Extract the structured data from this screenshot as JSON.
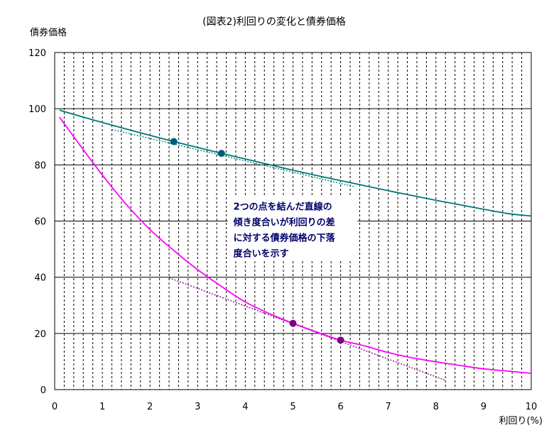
{
  "chart_data": {
    "type": "line",
    "title": "(図表2)利回りの変化と債券価格",
    "xlabel": "利回り(%)",
    "ylabel": "債券価格",
    "xlim": [
      0,
      10
    ],
    "ylim": [
      0,
      120
    ],
    "x_ticks": [
      "0",
      "1",
      "2",
      "3",
      "4",
      "5",
      "6",
      "7",
      "8",
      "9",
      "10"
    ],
    "y_ticks": [
      "0",
      "20",
      "40",
      "60",
      "80",
      "100",
      "120"
    ],
    "grid": {
      "horizontal": true,
      "vertical_minor_dashed": true
    },
    "series": [
      {
        "color": "#007777",
        "x": [
          0.1,
          0.5,
          1,
          1.5,
          2,
          2.5,
          3,
          3.5,
          4,
          4.5,
          5,
          5.5,
          6,
          6.5,
          7,
          7.5,
          8,
          8.5,
          9,
          9.5,
          10
        ],
        "values": [
          99.5,
          97.5,
          95.1,
          92.8,
          90.5,
          88.3,
          86.2,
          84.1,
          82.1,
          80.1,
          78.1,
          76.2,
          74.4,
          72.6,
          70.8,
          69.1,
          67.4,
          65.8,
          64.2,
          62.7,
          61.8
        ]
      },
      {
        "color": "#ff00ff",
        "x": [
          0.1,
          0.5,
          1,
          1.5,
          2,
          2.5,
          3,
          3.5,
          4,
          4.5,
          5,
          5.5,
          6,
          6.5,
          7,
          7.5,
          8,
          8.5,
          9,
          9.5,
          10
        ],
        "values": [
          97.0,
          87.7,
          76.4,
          66.0,
          57.0,
          49.5,
          42.7,
          36.7,
          31.2,
          27.1,
          23.6,
          20.5,
          17.6,
          15.6,
          13.2,
          11.3,
          9.9,
          8.6,
          7.4,
          6.6,
          5.8
        ]
      }
    ],
    "tangent_lines": [
      {
        "color": "#007777",
        "x": [
          1.2,
          6.3
        ],
        "y": [
          92.6,
          72.2
        ]
      },
      {
        "color": "#800080",
        "x": [
          2.4,
          8.2
        ],
        "y": [
          39.8,
          3.3
        ]
      }
    ],
    "points": [
      {
        "color": "#005a7a",
        "x": 2.5,
        "y": 88.3
      },
      {
        "color": "#005a7a",
        "x": 3.5,
        "y": 84.1
      },
      {
        "color": "#800080",
        "x": 5.0,
        "y": 23.6
      },
      {
        "color": "#800080",
        "x": 6.0,
        "y": 17.6
      }
    ],
    "annotation": {
      "lines": [
        "2つの点を結んだ直線の",
        "傾き度合いが利回りの差",
        "に対する債券価格の下落",
        "度合いを示す"
      ],
      "x": 3.75,
      "y": 64
    }
  }
}
